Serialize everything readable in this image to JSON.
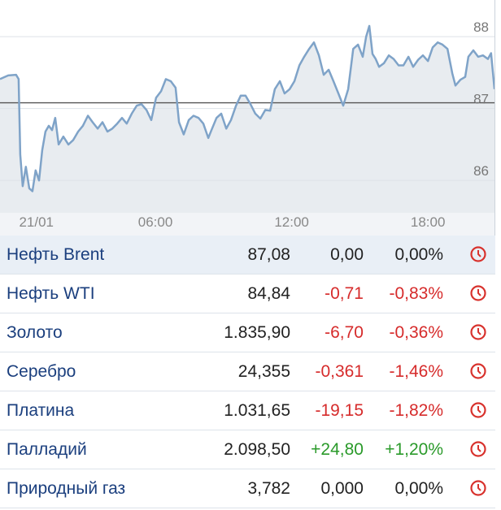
{
  "chart_data": {
    "type": "line",
    "color": "#7fa3c8",
    "fill": "#e8ecf0",
    "grid": true,
    "x": [
      -0.84,
      -0.48,
      -0.13,
      -0.02,
      0.05,
      0.16,
      0.3,
      0.45,
      0.59,
      0.73,
      0.88,
      1.02,
      1.16,
      1.31,
      1.45,
      1.59,
      1.74,
      1.95,
      2.17,
      2.38,
      2.6,
      2.81,
      3.03,
      3.24,
      3.46,
      3.67,
      3.89,
      4.1,
      4.32,
      4.53,
      4.74,
      4.96,
      5.18,
      5.39,
      5.61,
      5.82,
      6.03,
      6.25,
      6.46,
      6.68,
      6.89,
      7.04,
      7.25,
      7.47,
      7.68,
      7.9,
      8.11,
      8.33,
      8.47,
      8.69,
      8.9,
      9.12,
      9.33,
      9.55,
      9.76,
      9.97,
      10.19,
      10.4,
      10.62,
      10.84,
      11.05,
      11.26,
      11.48,
      11.69,
      11.91,
      12.12,
      12.34,
      12.55,
      12.77,
      12.98,
      13.2,
      13.41,
      13.63,
      13.84,
      14.06,
      14.27,
      14.49,
      14.71,
      14.92,
      15.13,
      15.28,
      15.42,
      15.56,
      15.7,
      15.85,
      16.06,
      16.28,
      16.49,
      16.71,
      16.92,
      17.14,
      17.35,
      17.57,
      17.78,
      18.0,
      18.21,
      18.43,
      18.64,
      18.86,
      19.07,
      19.21,
      19.43,
      19.64,
      19.78,
      20.0,
      20.21,
      20.42,
      20.64,
      20.78,
      20.93
    ],
    "y": [
      87.41,
      87.46,
      87.47,
      87.41,
      86.36,
      85.92,
      86.19,
      85.89,
      85.85,
      86.14,
      86.0,
      86.42,
      86.68,
      86.76,
      86.7,
      86.87,
      86.5,
      86.61,
      86.5,
      86.56,
      86.68,
      86.76,
      86.9,
      86.81,
      86.72,
      86.81,
      86.68,
      86.72,
      86.79,
      86.87,
      86.79,
      86.93,
      87.04,
      87.06,
      86.98,
      86.84,
      87.15,
      87.24,
      87.41,
      87.38,
      87.29,
      86.81,
      86.64,
      86.84,
      86.9,
      86.87,
      86.79,
      86.59,
      86.7,
      86.87,
      86.93,
      86.72,
      86.84,
      87.04,
      87.18,
      87.18,
      87.06,
      86.93,
      86.86,
      86.98,
      86.97,
      87.27,
      87.38,
      87.21,
      87.27,
      87.38,
      87.6,
      87.72,
      87.83,
      87.92,
      87.74,
      87.47,
      87.54,
      87.38,
      87.21,
      87.04,
      87.27,
      87.83,
      87.89,
      87.72,
      88.0,
      88.15,
      87.76,
      87.69,
      87.58,
      87.63,
      87.74,
      87.69,
      87.6,
      87.6,
      87.72,
      87.58,
      87.68,
      87.74,
      87.66,
      87.85,
      87.92,
      87.89,
      87.83,
      87.49,
      87.32,
      87.4,
      87.44,
      87.72,
      87.81,
      87.72,
      87.74,
      87.69,
      87.77,
      87.27
    ],
    "reference_line": 87.08,
    "xlim": [
      -0.84,
      20.93
    ],
    "ylim": [
      85.55,
      88.51
    ],
    "xticks": [
      {
        "value": 0,
        "label": "21/01"
      },
      {
        "value": 6,
        "label": "06:00"
      },
      {
        "value": 12,
        "label": "12:00"
      },
      {
        "value": 18,
        "label": "18:00"
      }
    ],
    "yticks": [
      86,
      87,
      88
    ]
  },
  "table": {
    "rows": [
      {
        "name": "Нефть Brent",
        "price": "87,08",
        "change": "0,00",
        "percent": "0,00%",
        "color": "#222222"
      },
      {
        "name": "Нефть WTI",
        "price": "84,84",
        "change": "-0,71",
        "percent": "-0,83%",
        "color": "#d62b2b"
      },
      {
        "name": "Золото",
        "price": "1.835,90",
        "change": "-6,70",
        "percent": "-0,36%",
        "color": "#d62b2b"
      },
      {
        "name": "Серебро",
        "price": "24,355",
        "change": "-0,361",
        "percent": "-1,46%",
        "color": "#d62b2b"
      },
      {
        "name": "Платина",
        "price": "1.031,65",
        "change": "-19,15",
        "percent": "-1,82%",
        "color": "#d62b2b"
      },
      {
        "name": "Палладий",
        "price": "2.098,50",
        "change": "+24,80",
        "percent": "+1,20%",
        "color": "#2a9a2a"
      },
      {
        "name": "Природный газ",
        "price": "3,782",
        "change": "0,000",
        "percent": "0,00%",
        "color": "#222222"
      }
    ]
  }
}
